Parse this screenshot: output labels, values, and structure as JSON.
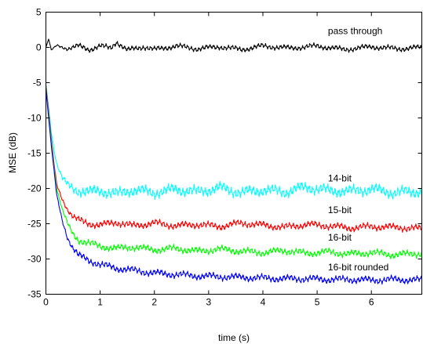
{
  "chart_data": {
    "type": "line",
    "title": "",
    "xlabel": "time (s)",
    "ylabel": "MSE (dB)",
    "xlim": [
      0,
      6.93
    ],
    "ylim": [
      -35,
      5
    ],
    "xticks": [
      0,
      1,
      2,
      3,
      4,
      5,
      6
    ],
    "yticks": [
      5,
      0,
      -5,
      -10,
      -15,
      -20,
      -25,
      -30,
      -35
    ],
    "grid": false,
    "legend": "none",
    "series": [
      {
        "name": "pass through",
        "color": "#000000",
        "label_at": {
          "x": 5.2,
          "y": 1.9
        },
        "x": [
          0,
          0.05,
          0.1,
          0.2,
          0.4,
          0.6,
          0.8,
          1.0,
          1.2,
          1.3,
          1.5,
          1.8,
          2.0,
          2.4,
          2.8,
          3.2,
          3.6,
          4.0,
          4.5,
          5.0,
          5.5,
          6.0,
          6.5,
          6.93
        ],
        "y": [
          0,
          1.2,
          -0.4,
          0.3,
          -0.2,
          0.2,
          -0.3,
          0.2,
          -0.1,
          0.8,
          -0.4,
          0.1,
          -0.3,
          0.2,
          -0.2,
          0.1,
          -0.3,
          0.2,
          -0.1,
          0.2,
          -0.3,
          0.1,
          -0.2,
          0
        ]
      },
      {
        "name": "14-bit",
        "color": "#00ffff",
        "label_at": {
          "x": 5.2,
          "y": -19.0
        },
        "x": [
          0,
          0.05,
          0.1,
          0.15,
          0.2,
          0.3,
          0.4,
          0.5,
          0.6,
          0.8,
          1.0,
          1.3,
          1.6,
          2.0,
          2.4,
          2.8,
          3.2,
          3.6,
          4.0,
          4.4,
          4.8,
          5.2,
          5.6,
          6.0,
          6.4,
          6.93
        ],
        "y": [
          -5,
          -8.5,
          -12,
          -14.5,
          -16.5,
          -18.5,
          -19.5,
          -20,
          -20.3,
          -20.5,
          -20.3,
          -20.8,
          -20.2,
          -20.6,
          -20.1,
          -20.5,
          -19.9,
          -20.6,
          -20.2,
          -20.5,
          -19.8,
          -20.3,
          -20.4,
          -20.1,
          -20.6,
          -20.4
        ]
      },
      {
        "name": "15-bit",
        "color": "#ff0000",
        "label_at": {
          "x": 5.2,
          "y": -23.5
        },
        "x": [
          0,
          0.05,
          0.1,
          0.15,
          0.2,
          0.3,
          0.4,
          0.5,
          0.6,
          0.8,
          1.0,
          1.3,
          1.6,
          2.0,
          2.4,
          2.8,
          3.2,
          3.6,
          4.0,
          4.4,
          4.8,
          5.2,
          5.6,
          6.0,
          6.4,
          6.93
        ],
        "y": [
          -5.5,
          -9,
          -13,
          -16.5,
          -19.5,
          -21.5,
          -23,
          -24,
          -24.5,
          -25,
          -25.2,
          -24.8,
          -25.3,
          -24.9,
          -25.3,
          -25.1,
          -25.4,
          -24.9,
          -25.2,
          -25.5,
          -25.1,
          -25.3,
          -25.6,
          -25.4,
          -25.5,
          -25.7
        ]
      },
      {
        "name": "16-bit",
        "color": "#00ff00",
        "label_at": {
          "x": 5.2,
          "y": -27.4
        },
        "x": [
          0,
          0.05,
          0.1,
          0.15,
          0.2,
          0.3,
          0.4,
          0.5,
          0.6,
          0.8,
          1.0,
          1.3,
          1.6,
          2.0,
          2.4,
          2.8,
          3.2,
          3.6,
          4.0,
          4.4,
          4.8,
          5.2,
          5.6,
          6.0,
          6.4,
          6.93
        ],
        "y": [
          -6,
          -9.5,
          -13.5,
          -17,
          -20,
          -23,
          -25,
          -26.5,
          -27.3,
          -27.8,
          -28.2,
          -28.5,
          -28.3,
          -28.7,
          -28.5,
          -28.9,
          -28.6,
          -28.9,
          -29.1,
          -28.8,
          -29.2,
          -29.0,
          -29.3,
          -29.1,
          -29.4,
          -29.2
        ]
      },
      {
        "name": "16-bit rounded",
        "color": "#0000ff",
        "label_at": {
          "x": 5.2,
          "y": -31.6
        },
        "x": [
          0,
          0.05,
          0.1,
          0.15,
          0.2,
          0.3,
          0.4,
          0.5,
          0.6,
          0.8,
          1.0,
          1.3,
          1.6,
          2.0,
          2.4,
          2.8,
          3.2,
          3.6,
          4.0,
          4.4,
          4.8,
          5.2,
          5.6,
          6.0,
          6.4,
          6.93
        ],
        "y": [
          -6,
          -10,
          -14,
          -17.5,
          -21,
          -24.5,
          -27,
          -28.5,
          -29.5,
          -30.2,
          -30.8,
          -31.3,
          -31.6,
          -32.0,
          -32.2,
          -32.4,
          -32.5,
          -32.6,
          -32.7,
          -32.8,
          -32.8,
          -32.9,
          -32.9,
          -33.0,
          -32.9,
          -33.0
        ]
      }
    ]
  }
}
